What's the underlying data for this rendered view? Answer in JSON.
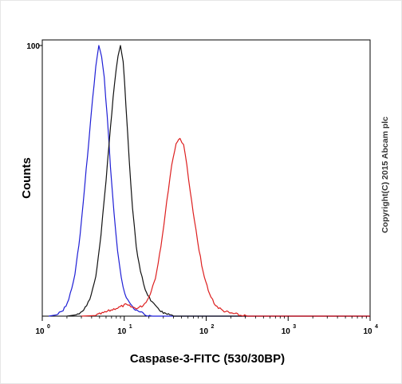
{
  "chart_data": {
    "type": "line",
    "title": "",
    "xlabel": "Caspase-3-FITC (530/30BP)",
    "ylabel": "Counts",
    "x_scale": "log",
    "xlim": [
      1,
      10000
    ],
    "ylim": [
      0,
      100
    ],
    "x_ticks": [
      {
        "base": "10",
        "exp": "0"
      },
      {
        "base": "10",
        "exp": "1"
      },
      {
        "base": "10",
        "exp": "2"
      },
      {
        "base": "10",
        "exp": "3"
      },
      {
        "base": "10",
        "exp": "4"
      }
    ],
    "y_ticks": [
      "100"
    ],
    "grid": false,
    "legend": "none",
    "series": [
      {
        "color": "#1f1fd6",
        "points": [
          [
            1.2,
            0
          ],
          [
            1.5,
            0.5
          ],
          [
            1.8,
            2
          ],
          [
            2.1,
            6
          ],
          [
            2.5,
            15
          ],
          [
            2.9,
            30
          ],
          [
            3.3,
            48
          ],
          [
            3.7,
            65
          ],
          [
            4.1,
            80
          ],
          [
            4.5,
            92
          ],
          [
            4.9,
            100
          ],
          [
            5.3,
            96
          ],
          [
            5.7,
            88
          ],
          [
            6.2,
            74
          ],
          [
            6.8,
            55
          ],
          [
            7.5,
            38
          ],
          [
            8.3,
            24
          ],
          [
            9.2,
            14
          ],
          [
            10.2,
            8
          ],
          [
            11.5,
            5
          ],
          [
            13,
            3
          ],
          [
            15,
            1.5
          ],
          [
            18,
            0.5
          ],
          [
            22,
            0
          ],
          [
            10000,
            0
          ]
        ]
      },
      {
        "color": "#111111",
        "points": [
          [
            2,
            0
          ],
          [
            2.6,
            0.5
          ],
          [
            3.2,
            2
          ],
          [
            3.8,
            6
          ],
          [
            4.5,
            15
          ],
          [
            5.2,
            30
          ],
          [
            6,
            50
          ],
          [
            6.8,
            70
          ],
          [
            7.6,
            86
          ],
          [
            8.4,
            96
          ],
          [
            9,
            100
          ],
          [
            9.7,
            94
          ],
          [
            10.5,
            78
          ],
          [
            11.5,
            58
          ],
          [
            12.6,
            40
          ],
          [
            14,
            26
          ],
          [
            15.8,
            16
          ],
          [
            18,
            10
          ],
          [
            21,
            6
          ],
          [
            25,
            3
          ],
          [
            30,
            1
          ],
          [
            40,
            0
          ],
          [
            10000,
            0
          ]
        ]
      },
      {
        "color": "#dd1f1f",
        "points": [
          [
            3,
            0
          ],
          [
            4.5,
            0.5
          ],
          [
            6,
            1.5
          ],
          [
            8,
            3
          ],
          [
            10,
            4
          ],
          [
            12,
            3.5
          ],
          [
            14,
            3
          ],
          [
            17,
            4
          ],
          [
            20,
            7
          ],
          [
            24,
            14
          ],
          [
            28,
            26
          ],
          [
            33,
            42
          ],
          [
            38,
            56
          ],
          [
            43,
            64
          ],
          [
            48,
            66
          ],
          [
            53,
            63
          ],
          [
            58,
            56
          ],
          [
            64,
            46
          ],
          [
            72,
            35
          ],
          [
            82,
            24
          ],
          [
            95,
            14
          ],
          [
            110,
            8
          ],
          [
            130,
            4
          ],
          [
            160,
            2
          ],
          [
            200,
            1
          ],
          [
            260,
            0.3
          ],
          [
            320,
            0
          ],
          [
            10000,
            0
          ]
        ]
      }
    ]
  },
  "copyright": "Copyright(C) 2015 Abcam plc"
}
